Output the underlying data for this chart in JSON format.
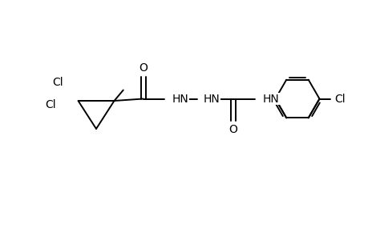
{
  "background_color": "#ffffff",
  "line_color": "#000000",
  "line_width": 1.4,
  "font_size": 10,
  "figsize": [
    4.6,
    3.0
  ],
  "dpi": 100,
  "xlim": [
    0,
    9.2
  ],
  "ylim": [
    0,
    6.0
  ]
}
